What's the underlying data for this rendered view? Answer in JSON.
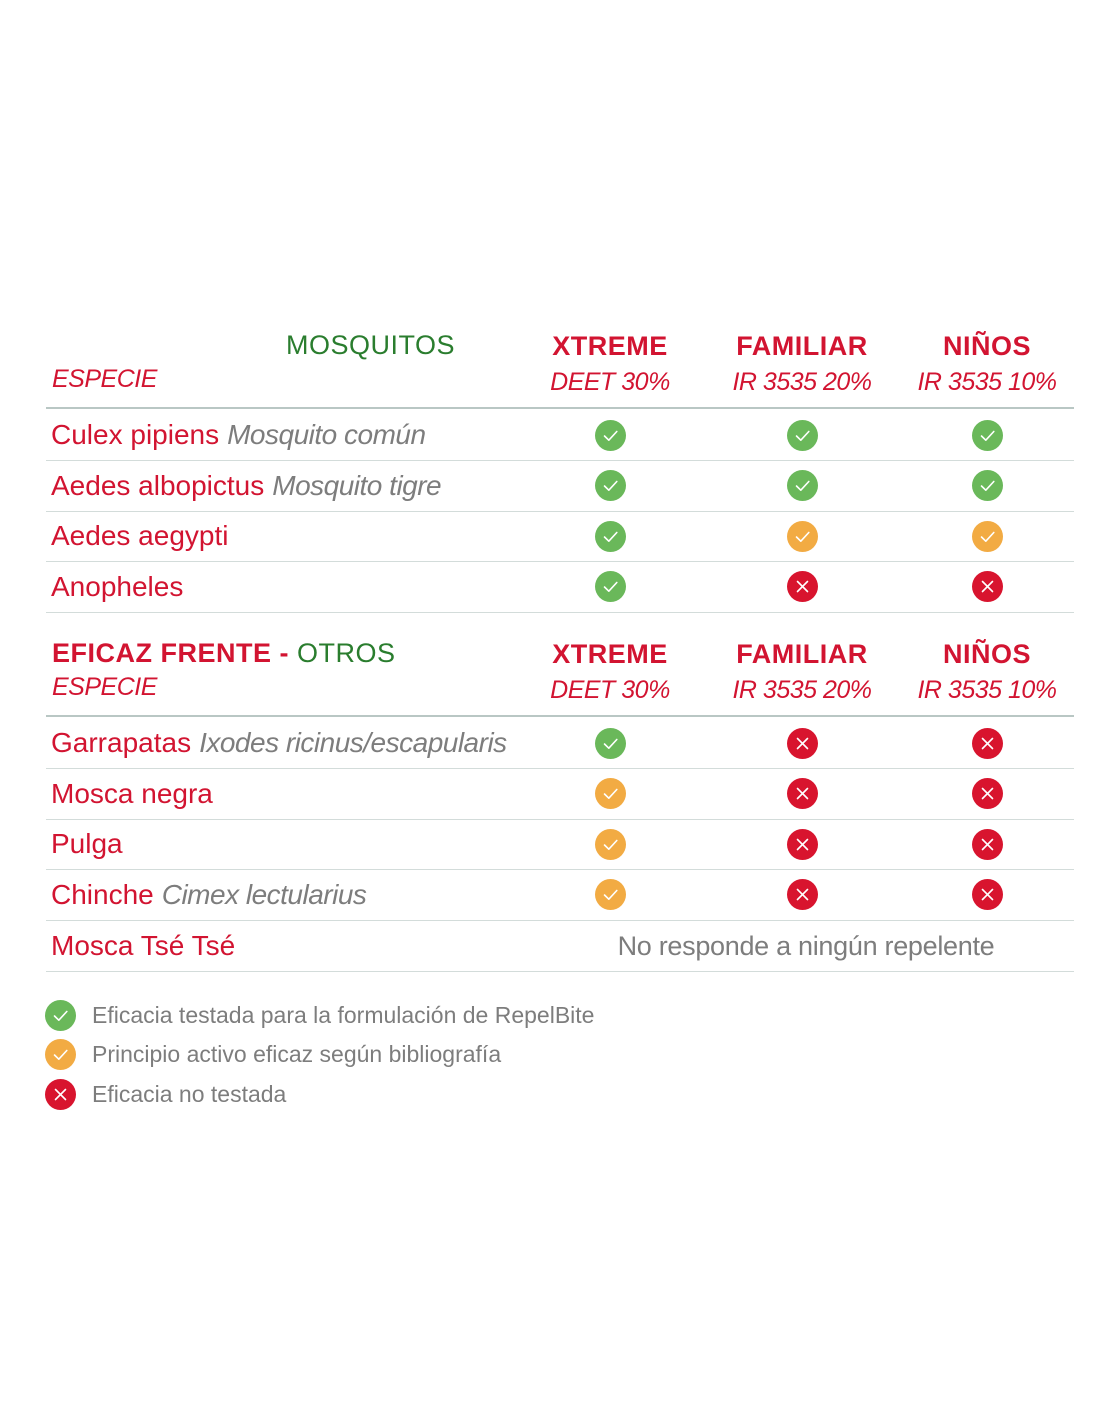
{
  "colors": {
    "red": "#d21431",
    "green_text": "#2a7d2e",
    "grey": "#7d7d7d",
    "status_tested": "#6ab85a",
    "status_bibliography": "#f2ab43",
    "status_not_tested": "#d8142e"
  },
  "columns": [
    {
      "product": "XTREME",
      "formula": "DEET 30%"
    },
    {
      "product": "FAMILIAR",
      "formula": "IR 3535 20%"
    },
    {
      "product": "NIÑOS",
      "formula": "IR 3535 10%"
    }
  ],
  "section1": {
    "title": "MOSQUITOS",
    "especie_label": "ESPECIE",
    "rows": [
      {
        "name": "Culex pipiens",
        "scientific": "Mosquito común",
        "status": [
          "tested",
          "tested",
          "tested"
        ]
      },
      {
        "name": "Aedes albopictus",
        "scientific": "Mosquito tigre",
        "status": [
          "tested",
          "tested",
          "tested"
        ]
      },
      {
        "name": "Aedes aegypti",
        "scientific": "",
        "status": [
          "tested",
          "bibliography",
          "bibliography"
        ]
      },
      {
        "name": "Anopheles",
        "scientific": "",
        "status": [
          "tested",
          "not_tested",
          "not_tested"
        ]
      }
    ]
  },
  "section2": {
    "title_red": "EFICAZ FRENTE - ",
    "title_green": "OTROS",
    "especie_label": "ESPECIE",
    "rows": [
      {
        "name": "Garrapatas",
        "scientific": "Ixodes ricinus/escapularis",
        "status": [
          "tested",
          "not_tested",
          "not_tested"
        ]
      },
      {
        "name": "Mosca negra",
        "scientific": "",
        "status": [
          "bibliography",
          "not_tested",
          "not_tested"
        ]
      },
      {
        "name": "Pulga",
        "scientific": "",
        "status": [
          "bibliography",
          "not_tested",
          "not_tested"
        ]
      },
      {
        "name": "Chinche",
        "scientific": "Cimex lectularius",
        "status": [
          "bibliography",
          "not_tested",
          "not_tested"
        ]
      }
    ],
    "last_row": {
      "name": "Mosca Tsé Tsé",
      "note": "No responde a ningún repelente"
    }
  },
  "legend": [
    {
      "status": "tested",
      "icon": "green-check-icon",
      "label": "Eficacia testada para la formulación de RepelBite"
    },
    {
      "status": "bibliography",
      "icon": "orange-check-icon",
      "label": "Principio activo eficaz según bibliografía"
    },
    {
      "status": "not_tested",
      "icon": "red-x-icon",
      "label": "Eficacia no testada"
    }
  ]
}
